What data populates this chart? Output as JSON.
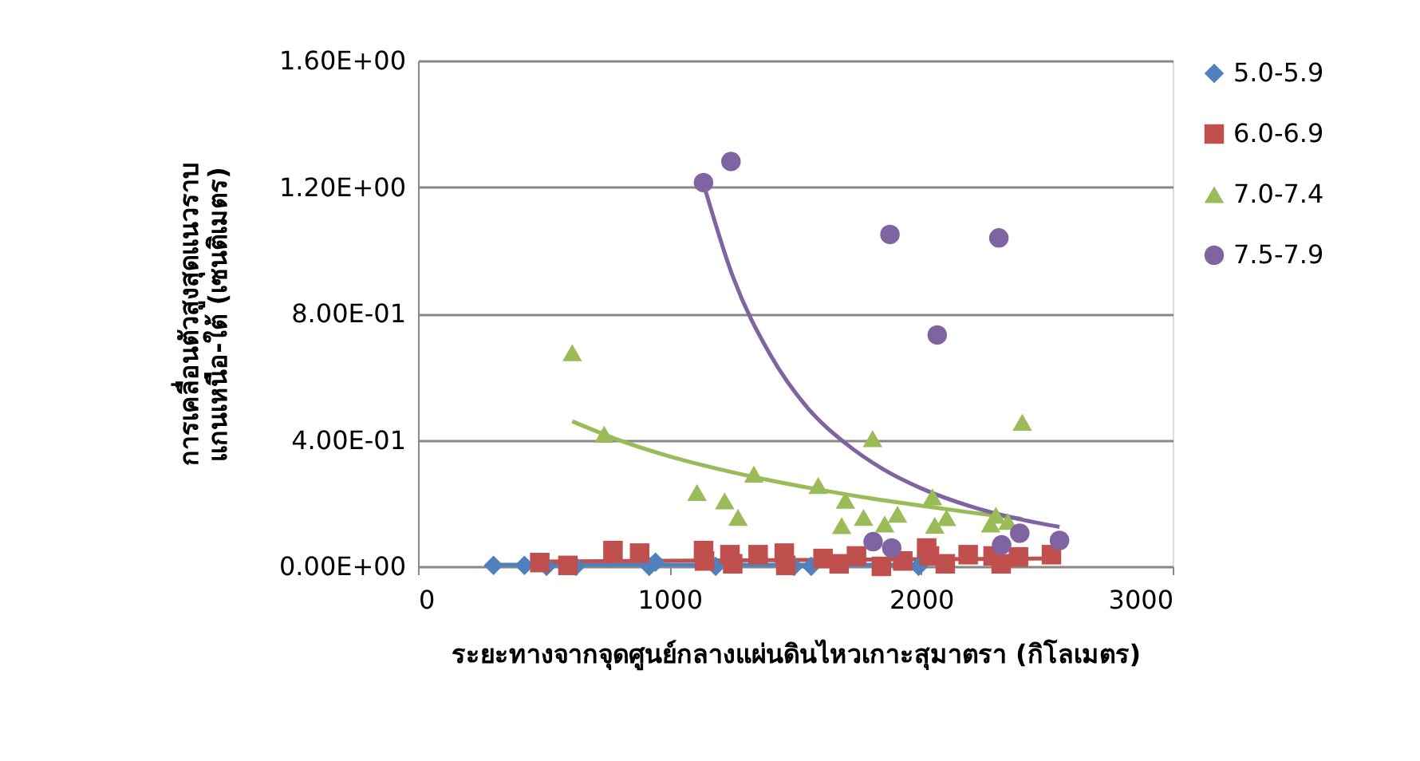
{
  "chart_data": {
    "type": "scatter",
    "xlabel": "ระยะทางจากจุดศูนย์กลางแผ่นดินไหวเกาะสุมาตรา (กิโลเมตร)",
    "ylabel": "การเคลื่อนตัวสูงสุดแนวราบ\nแกนเหนือ-ใต้ (เซนติเมตร)",
    "xlim": [
      0,
      3000
    ],
    "xticks": [
      0,
      1000,
      2000,
      3000
    ],
    "ylim": [
      0,
      1.6
    ],
    "yticks": [
      {
        "value": 0,
        "label": "0.00E+00"
      },
      {
        "value": 0.4,
        "label": "4.00E-01"
      },
      {
        "value": 0.8,
        "label": "8.00E-01"
      },
      {
        "value": 1.2,
        "label": "1.20E+00"
      },
      {
        "value": 1.6,
        "label": "1.60E+00"
      }
    ],
    "grid": "y",
    "legend": "right",
    "series": [
      {
        "name": "5.0-5.9",
        "color": "#4f81bd",
        "marker": "diamond",
        "x": [
          300,
          423,
          511,
          627,
          919,
          944,
          1183,
          1494,
          1563,
          1990
        ],
        "values": [
          0.003,
          0.003,
          0,
          0,
          0,
          0.013,
          0,
          0,
          0,
          0
        ]
      },
      {
        "name": "6.0-6.9",
        "color": "#c0504d",
        "marker": "square",
        "x": [
          484,
          596,
          775,
          881,
          1135,
          1139,
          1240,
          1251,
          1352,
          1456,
          1462,
          1610,
          1674,
          1743,
          1842,
          1927,
          2022,
          2033,
          2096,
          2187,
          2286,
          2318,
          2387,
          2518
        ],
        "values": [
          0.012,
          0.003,
          0.05,
          0.042,
          0.05,
          0.017,
          0.037,
          0.008,
          0.037,
          0.042,
          0.003,
          0.025,
          0.008,
          0.033,
          0,
          0.017,
          0.058,
          0.033,
          0.008,
          0.037,
          0.033,
          0.008,
          0.03,
          0.037
        ]
      },
      {
        "name": "7.0-7.4",
        "color": "#9bbb59",
        "marker": "triangle",
        "x": [
          613,
          740,
          1109,
          1219,
          1272,
          1335,
          1591,
          1699,
          1684,
          1771,
          1807,
          1855,
          1906,
          2045,
          2054,
          2101,
          2276,
          2297,
          2345,
          2402
        ],
        "values": [
          0.676,
          0.418,
          0.234,
          0.207,
          0.155,
          0.292,
          0.256,
          0.209,
          0.129,
          0.155,
          0.404,
          0.134,
          0.165,
          0.22,
          0.13,
          0.154,
          0.134,
          0.162,
          0.142,
          0.456
        ]
      },
      {
        "name": "7.5-7.9",
        "color": "#8064a2",
        "marker": "circle",
        "x": [
          1135,
          1244,
          1876,
          2309,
          2064,
          1809,
          1883,
          2320,
          2392,
          2550
        ],
        "values": [
          1.214,
          1.281,
          1.05,
          1.039,
          0.732,
          0.078,
          0.058,
          0.068,
          0.105,
          0.082
        ]
      },
      {
        "type": "line",
        "color": "#4f81bd",
        "x": [
          300,
          1990
        ],
        "values": [
          0.005,
          0.005
        ]
      },
      {
        "type": "line",
        "color": "#c0504d",
        "x": [
          484,
          1500,
          2518
        ],
        "values": [
          0.015,
          0.02,
          0.025
        ]
      },
      {
        "type": "line",
        "color": "#9bbb59",
        "x": [
          613,
          800,
          1000,
          1200,
          1400,
          1600,
          1800,
          2000,
          2200,
          2402
        ],
        "values": [
          0.459,
          0.399,
          0.348,
          0.307,
          0.272,
          0.242,
          0.215,
          0.192,
          0.17,
          0.15
        ]
      },
      {
        "type": "line",
        "color": "#8064a2",
        "x": [
          1135,
          1250,
          1400,
          1550,
          1700,
          1850,
          2000,
          2200,
          2400,
          2550
        ],
        "values": [
          1.21,
          0.92,
          0.67,
          0.5,
          0.389,
          0.307,
          0.247,
          0.189,
          0.148,
          0.125
        ]
      }
    ]
  }
}
